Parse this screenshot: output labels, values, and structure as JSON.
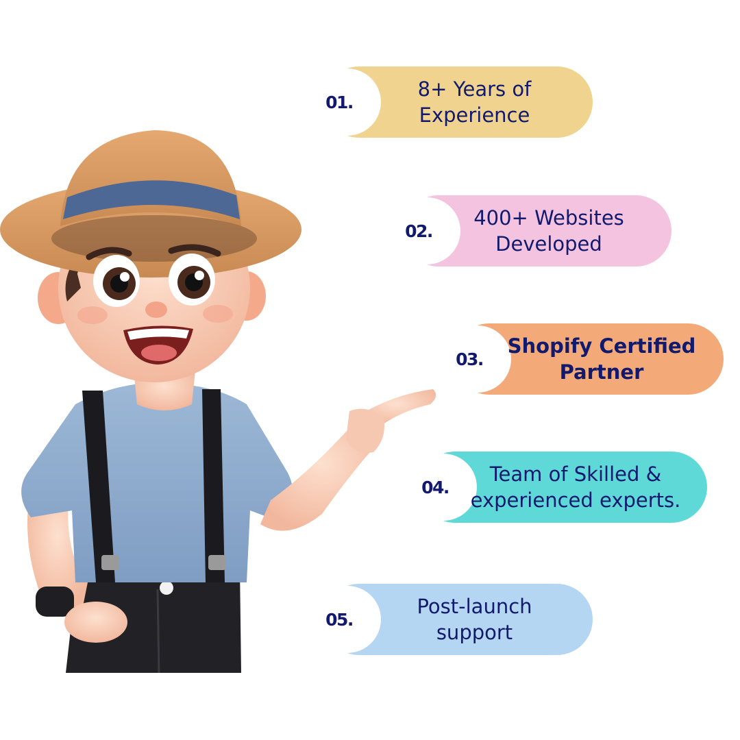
{
  "features": [
    {
      "number": "01.",
      "line1": "8+ Years of",
      "line2": "Experience"
    },
    {
      "number": "02.",
      "line1": "400+ Websites",
      "line2": "Developed"
    },
    {
      "number": "03.",
      "line1": "Shopify Certified",
      "line2": "Partner"
    },
    {
      "number": "04.",
      "line1": "Team of Skilled &",
      "line2": "experienced experts."
    },
    {
      "number": "05.",
      "line1": "Post-launch",
      "line2": "support"
    }
  ],
  "colors": {
    "pill1": "#f0d38f",
    "pill2": "#f3c3e0",
    "pill3": "#f3aa78",
    "pill4": "#5fd8d8",
    "pill5": "#b5d6f2",
    "text": "#121a6e"
  },
  "illustration": "cartoon-boy-with-hat-pointing-icon"
}
